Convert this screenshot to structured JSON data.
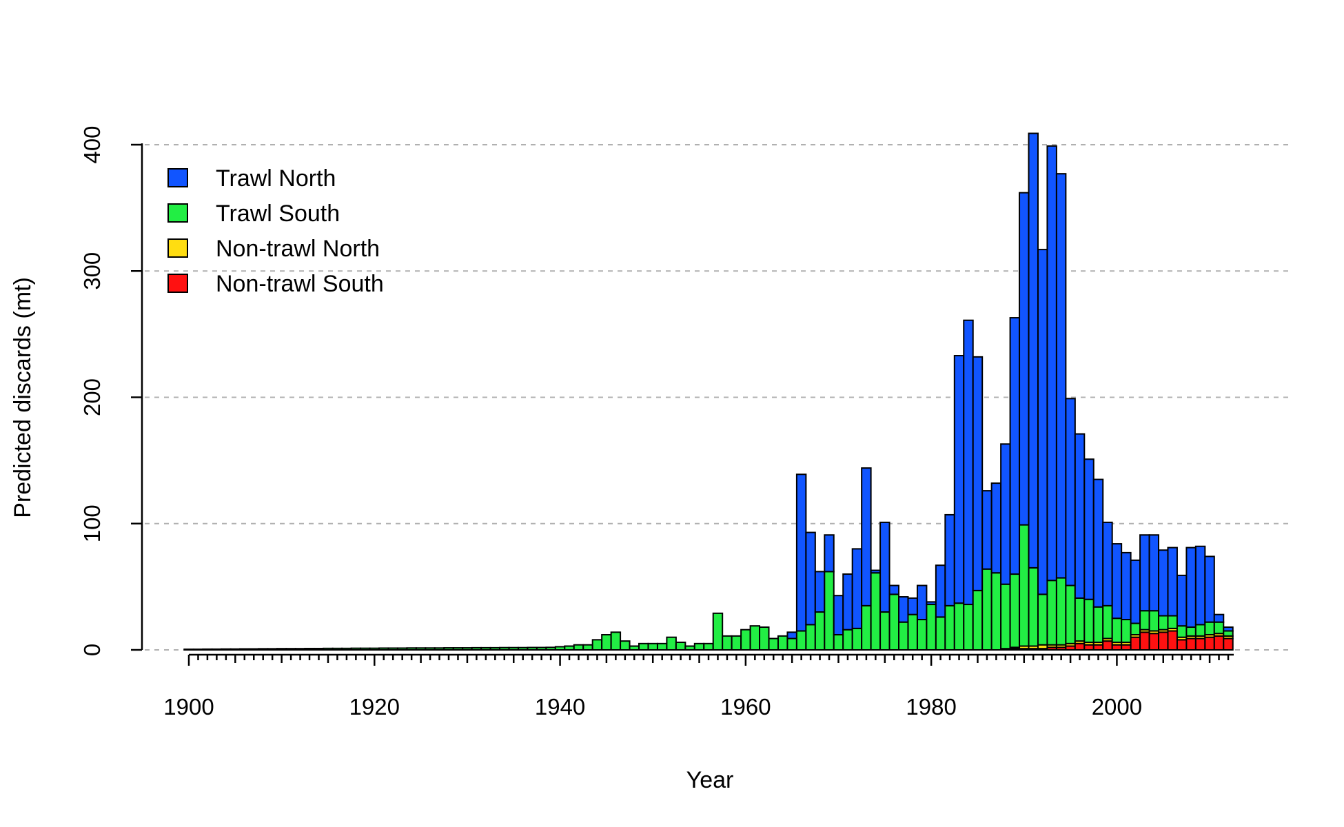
{
  "chart_data": {
    "type": "bar",
    "stacked": true,
    "title": "",
    "xlabel": "Year",
    "ylabel": "Predicted discards (mt)",
    "xlim": [
      1900,
      2012
    ],
    "ylim": [
      0,
      400
    ],
    "x_tick_labels": [
      "1900",
      "1920",
      "1940",
      "1960",
      "1980",
      "2000"
    ],
    "y_tick_labels": [
      "0",
      "100",
      "200",
      "300",
      "400"
    ],
    "gridlines_y": [
      0,
      100,
      200,
      300,
      400
    ],
    "legend_position": "top-left",
    "colors": {
      "trawl_north": "#1155ff",
      "trawl_south": "#22ee44",
      "nontrawl_north": "#ffdd11",
      "nontrawl_south": "#ff1111"
    },
    "x": [
      1900,
      1901,
      1902,
      1903,
      1904,
      1905,
      1906,
      1907,
      1908,
      1909,
      1910,
      1911,
      1912,
      1913,
      1914,
      1915,
      1916,
      1917,
      1918,
      1919,
      1920,
      1921,
      1922,
      1923,
      1924,
      1925,
      1926,
      1927,
      1928,
      1929,
      1930,
      1931,
      1932,
      1933,
      1934,
      1935,
      1936,
      1937,
      1938,
      1939,
      1940,
      1941,
      1942,
      1943,
      1944,
      1945,
      1946,
      1947,
      1948,
      1949,
      1950,
      1951,
      1952,
      1953,
      1954,
      1955,
      1956,
      1957,
      1958,
      1959,
      1960,
      1961,
      1962,
      1963,
      1964,
      1965,
      1966,
      1967,
      1968,
      1969,
      1970,
      1971,
      1972,
      1973,
      1974,
      1975,
      1976,
      1977,
      1978,
      1979,
      1980,
      1981,
      1982,
      1983,
      1984,
      1985,
      1986,
      1987,
      1988,
      1989,
      1990,
      1991,
      1992,
      1993,
      1994,
      1995,
      1996,
      1997,
      1998,
      1999,
      2000,
      2001,
      2002,
      2003,
      2004,
      2005,
      2006,
      2007,
      2008,
      2009,
      2010,
      2011,
      2012
    ],
    "series": [
      {
        "name": "Non-trawl South",
        "key": "nontrawl_south",
        "values": [
          0,
          0,
          0,
          0,
          0,
          0,
          0,
          0,
          0,
          0,
          0,
          0,
          0,
          0,
          0,
          0,
          0,
          0,
          0,
          0,
          0,
          0,
          0,
          0,
          0,
          0,
          0,
          0,
          0,
          0,
          0,
          0,
          0,
          0,
          0,
          0,
          0,
          0,
          0,
          0,
          0,
          0,
          0,
          0,
          0,
          0,
          0,
          0,
          0,
          0,
          0,
          0,
          0,
          0,
          0,
          0,
          0,
          0,
          0,
          0,
          0,
          0,
          0,
          0,
          0,
          0,
          0,
          0,
          0,
          0,
          0,
          0,
          0,
          0,
          0,
          0,
          0,
          0,
          0,
          0,
          0,
          0,
          0,
          0,
          0,
          0,
          0,
          0,
          0.5,
          1,
          1,
          1,
          1,
          2,
          2,
          3,
          5,
          4,
          4,
          7,
          4,
          4,
          10,
          14,
          13,
          14,
          15,
          8,
          9,
          9,
          10,
          11,
          9
        ]
      },
      {
        "name": "Non-trawl North",
        "key": "nontrawl_north",
        "values": [
          0,
          0,
          0,
          0,
          0,
          0,
          0,
          0,
          0,
          0,
          0,
          0,
          0,
          0,
          0,
          0,
          0,
          0,
          0,
          0,
          0,
          0,
          0,
          0,
          0,
          0,
          0,
          0,
          0,
          0,
          0,
          0,
          0,
          0,
          0,
          0,
          0,
          0,
          0,
          0,
          0,
          0,
          0,
          0,
          0,
          0,
          0,
          0,
          0,
          0,
          0,
          0,
          0,
          0,
          0,
          0,
          0,
          0,
          0,
          0,
          0,
          0,
          0,
          0,
          0,
          0,
          0,
          0,
          0,
          0,
          0,
          0,
          0,
          0,
          0,
          0,
          0,
          0,
          0,
          0,
          0,
          0,
          0,
          0,
          0,
          0,
          0,
          0,
          0.5,
          1,
          2,
          2,
          3,
          2,
          2,
          2,
          2,
          2,
          2,
          2,
          2,
          2,
          2,
          2,
          2,
          2,
          2,
          2,
          2,
          2,
          2,
          2,
          2
        ]
      },
      {
        "name": "Trawl South",
        "key": "trawl_south",
        "values": [
          0.5,
          0.5,
          0.6,
          0.6,
          0.7,
          0.7,
          0.8,
          0.8,
          0.9,
          0.9,
          1,
          1,
          1,
          1.1,
          1.1,
          1.2,
          1.2,
          1.2,
          1.3,
          1.3,
          1.3,
          1.4,
          1.4,
          1.4,
          1.5,
          1.5,
          1.5,
          1.5,
          1.6,
          1.6,
          1.6,
          1.7,
          1.7,
          1.7,
          1.8,
          1.8,
          1.8,
          1.9,
          1.9,
          2,
          2.5,
          3,
          4,
          4,
          8,
          12,
          14,
          7,
          3,
          5,
          5,
          5,
          10,
          6,
          3,
          5,
          5,
          29,
          11,
          11,
          16,
          19,
          18,
          9,
          11,
          9,
          15,
          20,
          30,
          62,
          12,
          16,
          17,
          35,
          61,
          30,
          44,
          22,
          28,
          24,
          36,
          26,
          35,
          37,
          36,
          47,
          64,
          61,
          51,
          58,
          96,
          62,
          40,
          51,
          53,
          46,
          34,
          34,
          28,
          26,
          19,
          18,
          9,
          15,
          16,
          11,
          10,
          9,
          7,
          9,
          10,
          9,
          4
        ]
      },
      {
        "name": "Trawl North",
        "key": "trawl_north",
        "values": [
          0,
          0,
          0,
          0,
          0,
          0,
          0,
          0,
          0,
          0,
          0,
          0,
          0,
          0,
          0,
          0,
          0,
          0,
          0,
          0,
          0,
          0,
          0,
          0,
          0,
          0,
          0,
          0,
          0,
          0,
          0,
          0,
          0,
          0,
          0,
          0,
          0,
          0,
          0,
          0,
          0,
          0,
          0,
          0,
          0,
          0,
          0,
          0,
          0,
          0,
          0,
          0,
          0,
          0,
          0,
          0,
          0,
          0,
          0,
          0,
          0,
          0,
          0,
          0,
          0,
          5,
          124,
          73,
          32,
          29,
          31,
          44,
          63,
          109,
          2,
          71,
          7,
          20,
          13,
          27,
          2,
          41,
          72,
          196,
          225,
          185,
          62,
          71,
          111,
          203,
          263,
          344,
          273,
          344,
          320,
          148,
          130,
          111,
          101,
          66,
          59,
          53,
          50,
          60,
          60,
          52,
          54,
          40,
          63,
          62,
          52,
          6,
          3
        ]
      }
    ]
  }
}
